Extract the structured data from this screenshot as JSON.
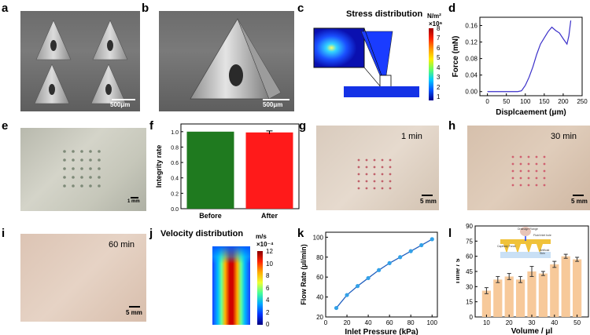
{
  "panels": {
    "a": {
      "label": "a",
      "scale_bar": "500μm"
    },
    "b": {
      "label": "b",
      "scale_bar": "500μm"
    },
    "c": {
      "label": "c",
      "title": "Stress distribution",
      "unit": "N/m²",
      "multiplier": "×10⁶",
      "ticks": [
        "8",
        "7",
        "6",
        "5",
        "4",
        "3",
        "2",
        "1"
      ]
    },
    "d": {
      "label": "d"
    },
    "e": {
      "label": "e",
      "scale_bar": "1 mm"
    },
    "f": {
      "label": "f"
    },
    "g": {
      "label": "g",
      "time": "1 min",
      "scale_bar": "5 mm"
    },
    "h": {
      "label": "h",
      "time": "30 min",
      "scale_bar": "5 mm"
    },
    "i": {
      "label": "i",
      "time": "60 min",
      "scale_bar": "5 mm"
    },
    "j": {
      "label": "j",
      "title": "Velocity  distribution",
      "unit": "m/s",
      "multiplier": "×10⁻⁴",
      "ticks": [
        "12",
        "10",
        "8",
        "6",
        "4",
        "2",
        "0"
      ]
    },
    "k": {
      "label": "k"
    },
    "l": {
      "label": "l",
      "inset_labels": [
        "Drainage Flange",
        "Capillary Force",
        "Fluid Inlet hole",
        "Artificial Skin"
      ]
    }
  },
  "chart_data": [
    {
      "id": "d",
      "type": "line",
      "xlabel": "Displcaement (μm)",
      "ylabel": "Force (mN)",
      "xlim": [
        -20,
        250
      ],
      "ylim": [
        -0.01,
        0.18
      ],
      "xticks": [
        0,
        50,
        100,
        150,
        200,
        250
      ],
      "yticks": [
        0.0,
        0.04,
        0.08,
        0.12,
        0.16
      ],
      "ytick_labels": [
        "0.00",
        "0.04",
        "0.08",
        "0.12",
        "0.16"
      ],
      "color": "#3a2fc9",
      "x": [
        0,
        40,
        80,
        90,
        100,
        110,
        120,
        130,
        140,
        150,
        160,
        170,
        180,
        190,
        200,
        210,
        215,
        220
      ],
      "y": [
        0.0,
        0.0,
        0.0,
        0.002,
        0.015,
        0.035,
        0.06,
        0.09,
        0.115,
        0.13,
        0.145,
        0.156,
        0.148,
        0.142,
        0.128,
        0.115,
        0.135,
        0.172
      ]
    },
    {
      "id": "f",
      "type": "bar",
      "ylabel": "Integrity rate",
      "categories": [
        "Before",
        "After"
      ],
      "values": [
        1.0,
        0.99
      ],
      "errors": [
        0,
        0.02
      ],
      "colors": [
        "#1f7a1f",
        "#ff1a1a"
      ],
      "ylim": [
        0,
        1.1
      ],
      "yticks": [
        0.0,
        0.2,
        0.4,
        0.6,
        0.8,
        1.0
      ],
      "ytick_labels": [
        "0.0",
        "0.2",
        "0.4",
        "0.6",
        "0.8",
        "1.0"
      ]
    },
    {
      "id": "k",
      "type": "line",
      "xlabel": "Inlet Pressure (kPa)",
      "ylabel": "Flow Rate (μl/min)",
      "xlim": [
        0,
        105
      ],
      "ylim": [
        20,
        105
      ],
      "xticks": [
        0,
        20,
        40,
        60,
        80,
        100
      ],
      "yticks": [
        20,
        40,
        60,
        80,
        100
      ],
      "color": "#1f5fbf",
      "marker_color": "#33a1e8",
      "x": [
        10,
        20,
        30,
        40,
        50,
        60,
        70,
        80,
        90,
        100
      ],
      "y": [
        29,
        42,
        51,
        59,
        67,
        74,
        80,
        86,
        92,
        98
      ]
    },
    {
      "id": "l",
      "type": "bar",
      "xlabel": "Volume / μl",
      "ylabel": "Time / s",
      "xlim": [
        5,
        55
      ],
      "ylim": [
        0,
        90
      ],
      "xticks": [
        10,
        20,
        30,
        40,
        50
      ],
      "yticks": [
        0,
        15,
        30,
        45,
        60,
        75,
        90
      ],
      "color": "#f7c99a",
      "x": [
        10,
        15,
        20,
        25,
        30,
        35,
        40,
        45,
        50
      ],
      "values": [
        26,
        37,
        40,
        37,
        45,
        43,
        52,
        60,
        57
      ],
      "errors": [
        3,
        3,
        3,
        3,
        5,
        2,
        3,
        2,
        2
      ]
    }
  ]
}
